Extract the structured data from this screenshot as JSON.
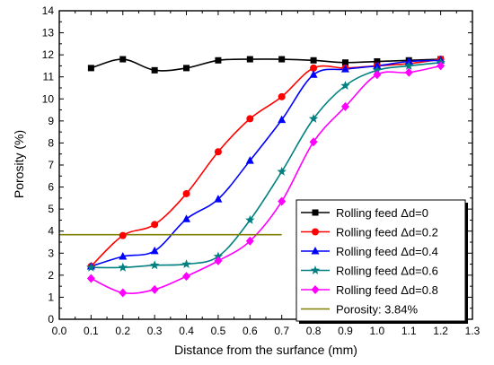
{
  "chart_data": {
    "type": "line",
    "xlabel": "Distance from the surfance (mm)",
    "ylabel": "Porosity (%)",
    "xlim": [
      0.0,
      1.3
    ],
    "ylim": [
      0,
      14
    ],
    "xticks": [
      "0.0",
      "0.1",
      "0.2",
      "0.3",
      "0.4",
      "0.5",
      "0.6",
      "0.7",
      "0.8",
      "0.9",
      "1.0",
      "1.1",
      "1.2",
      "1.3"
    ],
    "yticks": [
      "0",
      "1",
      "2",
      "3",
      "4",
      "5",
      "6",
      "7",
      "8",
      "9",
      "10",
      "11",
      "12",
      "13",
      "14"
    ],
    "grid": false,
    "legend_position": "bottom-right",
    "series": [
      {
        "name": "Rolling feed Δd=0",
        "color": "#000000",
        "marker": "square",
        "x": [
          0.1,
          0.2,
          0.3,
          0.4,
          0.5,
          0.6,
          0.7,
          0.8,
          0.9,
          1.0,
          1.1,
          1.2
        ],
        "y": [
          11.4,
          11.8,
          11.3,
          11.4,
          11.75,
          11.8,
          11.8,
          11.75,
          11.65,
          11.7,
          11.75,
          11.8
        ]
      },
      {
        "name": "Rolling feed Δd=0.2",
        "color": "#ff0000",
        "marker": "circle",
        "x": [
          0.1,
          0.2,
          0.3,
          0.4,
          0.5,
          0.6,
          0.7,
          0.8,
          0.9,
          1.0,
          1.1,
          1.2
        ],
        "y": [
          2.4,
          3.8,
          4.3,
          5.7,
          7.6,
          9.1,
          10.1,
          11.4,
          11.4,
          11.5,
          11.6,
          11.8
        ]
      },
      {
        "name": "Rolling feed Δd=0.4",
        "color": "#0000ff",
        "marker": "triangle",
        "x": [
          0.1,
          0.2,
          0.3,
          0.4,
          0.5,
          0.6,
          0.7,
          0.8,
          0.9,
          1.0,
          1.1,
          1.2
        ],
        "y": [
          2.4,
          2.85,
          3.1,
          4.55,
          5.45,
          7.2,
          9.05,
          11.1,
          11.35,
          11.5,
          11.7,
          11.75
        ]
      },
      {
        "name": "Rolling feed Δd=0.6",
        "color": "#008080",
        "marker": "star",
        "x": [
          0.1,
          0.2,
          0.3,
          0.4,
          0.5,
          0.6,
          0.7,
          0.8,
          0.9,
          1.0,
          1.1,
          1.2
        ],
        "y": [
          2.35,
          2.35,
          2.45,
          2.5,
          2.85,
          4.5,
          6.7,
          9.1,
          10.6,
          11.3,
          11.5,
          11.65
        ]
      },
      {
        "name": "Rolling feed Δd=0.8",
        "color": "#ff00ff",
        "marker": "diamond",
        "x": [
          0.1,
          0.2,
          0.3,
          0.4,
          0.5,
          0.6,
          0.7,
          0.8,
          0.9,
          1.0,
          1.1,
          1.2
        ],
        "y": [
          1.85,
          1.2,
          1.35,
          1.95,
          2.65,
          3.55,
          5.35,
          8.05,
          9.65,
          11.1,
          11.2,
          11.5
        ]
      },
      {
        "name": "Porosity: 3.84%",
        "color": "#808000",
        "marker": "none",
        "x": [
          0.0,
          0.7
        ],
        "y": [
          3.84,
          3.84
        ]
      }
    ]
  }
}
